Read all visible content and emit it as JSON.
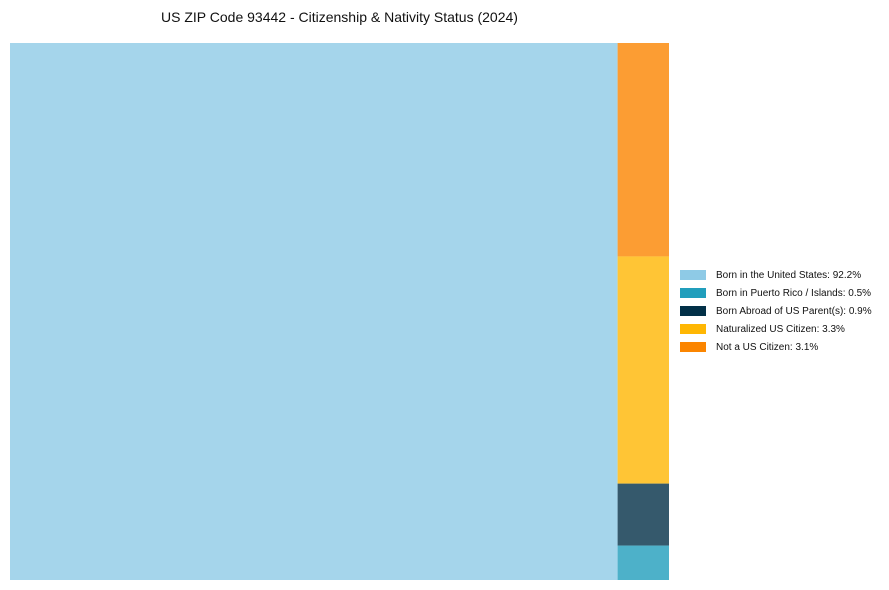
{
  "chart_data": {
    "type": "treemap",
    "title": "US ZIP Code 93442 - Citizenship & Nativity Status (2024)",
    "items": [
      {
        "label": "Born in the United States",
        "value": 92.2,
        "color": "#8ecae6",
        "legend": "Born in the United States: 92.2%"
      },
      {
        "label": "Born in Puerto Rico / Islands",
        "value": 0.5,
        "color": "#219ebc",
        "legend": "Born in Puerto Rico / Islands: 0.5%"
      },
      {
        "label": "Born Abroad of US Parent(s)",
        "value": 0.9,
        "color": "#023047",
        "legend": "Born Abroad of US Parent(s): 0.9%"
      },
      {
        "label": "Naturalized US Citizen",
        "value": 3.3,
        "color": "#ffb703",
        "legend": "Naturalized US Citizen: 3.3%"
      },
      {
        "label": "Not a US Citizen",
        "value": 3.1,
        "color": "#fb8500",
        "legend": "Not a US Citizen: 3.1%"
      }
    ],
    "legend_position": "right"
  }
}
